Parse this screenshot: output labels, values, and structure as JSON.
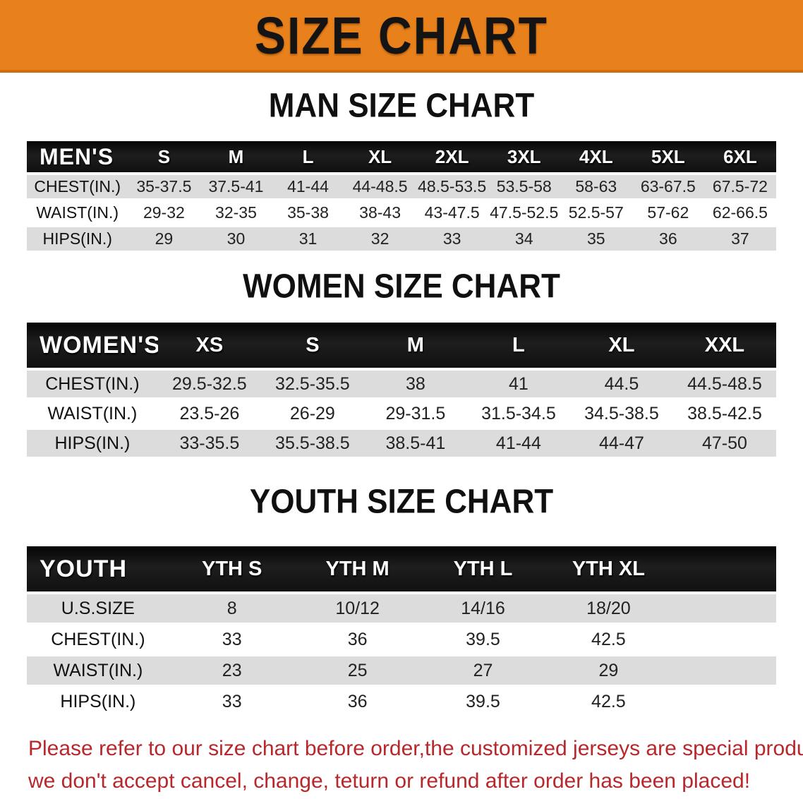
{
  "banner": {
    "title": "SIZE CHART"
  },
  "sections": [
    {
      "heading": "MAN SIZE CHART",
      "table": {
        "header_label": "MEN'S",
        "columns": [
          "S",
          "M",
          "L",
          "XL",
          "2XL",
          "3XL",
          "4XL",
          "5XL",
          "6XL"
        ],
        "rows": [
          {
            "label": "CHEST(IN.)",
            "values": [
              "35-37.5",
              "37.5-41",
              "41-44",
              "44-48.5",
              "48.5-53.5",
              "53.5-58",
              "58-63",
              "63-67.5",
              "67.5-72"
            ]
          },
          {
            "label": "WAIST(IN.)",
            "values": [
              "29-32",
              "32-35",
              "35-38",
              "38-43",
              "43-47.5",
              "47.5-52.5",
              "52.5-57",
              "57-62",
              "62-66.5"
            ]
          },
          {
            "label": "HIPS(IN.)",
            "values": [
              "29",
              "30",
              "31",
              "32",
              "33",
              "34",
              "35",
              "36",
              "37"
            ]
          }
        ]
      }
    },
    {
      "heading": "WOMEN SIZE CHART",
      "table": {
        "header_label": "WOMEN'S",
        "columns": [
          "XS",
          "S",
          "M",
          "L",
          "XL",
          "XXL"
        ],
        "rows": [
          {
            "label": "CHEST(IN.)",
            "values": [
              "29.5-32.5",
              "32.5-35.5",
              "38",
              "41",
              "44.5",
              "44.5-48.5"
            ]
          },
          {
            "label": "WAIST(IN.)",
            "values": [
              "23.5-26",
              "26-29",
              "29-31.5",
              "31.5-34.5",
              "34.5-38.5",
              "38.5-42.5"
            ]
          },
          {
            "label": "HIPS(IN.)",
            "values": [
              "33-35.5",
              "35.5-38.5",
              "38.5-41",
              "41-44",
              "44-47",
              "47-50"
            ]
          }
        ]
      }
    },
    {
      "heading": "YOUTH SIZE CHART",
      "table": {
        "header_label": "YOUTH",
        "columns": [
          "YTH S",
          "YTH M",
          "YTH L",
          "YTH XL"
        ],
        "rows": [
          {
            "label": "U.S.SIZE",
            "values": [
              "8",
              "10/12",
              "14/16",
              "18/20"
            ]
          },
          {
            "label": "CHEST(IN.)",
            "values": [
              "33",
              "36",
              "39.5",
              "42.5"
            ]
          },
          {
            "label": "WAIST(IN.)",
            "values": [
              "23",
              "25",
              "27",
              "29"
            ]
          },
          {
            "label": "HIPS(IN.)",
            "values": [
              "33",
              "36",
              "39.5",
              "42.5"
            ]
          }
        ]
      }
    }
  ],
  "note": {
    "lines": [
      "Please refer to our size chart before order,the customized jerseys are special products,",
      "we don't accept cancel, change, teturn or refund after order has been placed!"
    ]
  },
  "colors": {
    "banner_bg": "#E8811B",
    "banner_edge": "#CE6E10",
    "table_header_bg": "#161616",
    "row_stripe": "#DCDCDC",
    "note_text": "#B7282C"
  }
}
